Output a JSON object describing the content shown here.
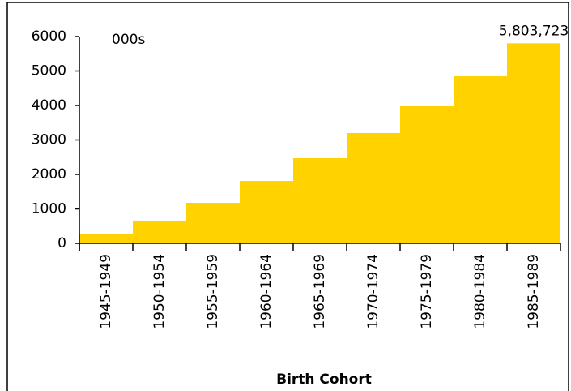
{
  "chart_data": {
    "type": "bar",
    "x_label": "Birth Cohort",
    "annotation": "000s",
    "categories": [
      "1945-1949",
      "1950-1954",
      "1955-1959",
      "1960-1964",
      "1965-1969",
      "1970-1974",
      "1975-1979",
      "1980-1984",
      "1985-1989"
    ],
    "values": [
      260,
      660,
      1176,
      1810,
      2470,
      3200,
      3976,
      4847,
      5803.723
    ],
    "value_labels": [
      null,
      null,
      null,
      null,
      null,
      null,
      null,
      null,
      "5,803,723"
    ],
    "color": "#ffd200",
    "ylim": [
      0,
      6000
    ],
    "yticks": [
      0,
      1000,
      2000,
      3000,
      4000,
      5000,
      6000
    ]
  }
}
